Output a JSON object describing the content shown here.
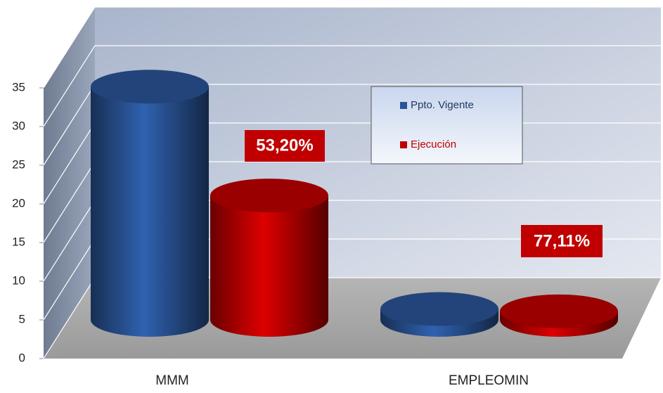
{
  "chart_data": {
    "type": "bar3d_cylinder",
    "categories": [
      "MMM",
      "EMPLEOMIN"
    ],
    "series": [
      {
        "name": "Ppto. Vigente",
        "color": "#2a5599",
        "values": [
          30,
          1.4
        ]
      },
      {
        "name": "Ejecución",
        "color": "#c00000",
        "values": [
          16,
          1.1
        ]
      }
    ],
    "ylim": [
      0,
      35
    ],
    "yticks": [
      0,
      5,
      10,
      15,
      20,
      25,
      30,
      35
    ],
    "grid": true,
    "annotations": [
      "53,20%",
      "77,11%"
    ]
  }
}
